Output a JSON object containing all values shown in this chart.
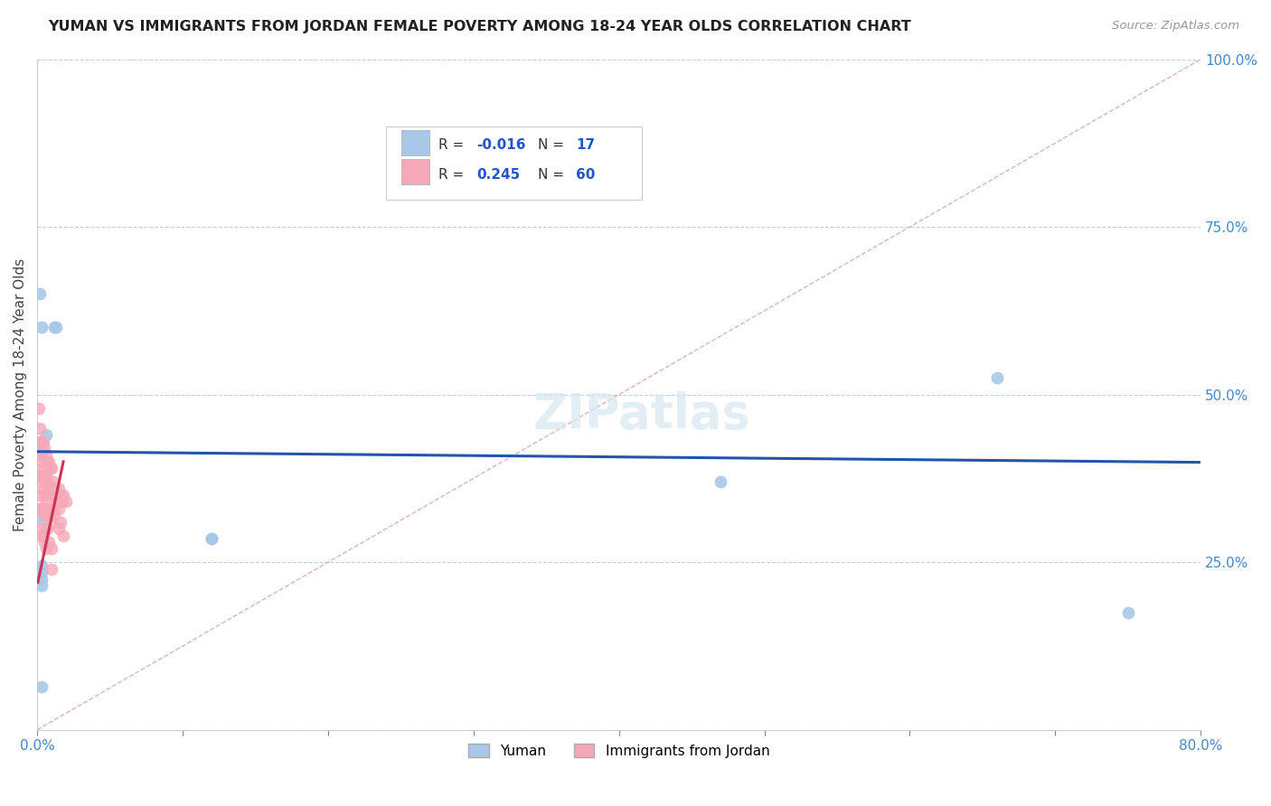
{
  "title": "YUMAN VS IMMIGRANTS FROM JORDAN FEMALE POVERTY AMONG 18-24 YEAR OLDS CORRELATION CHART",
  "source": "Source: ZipAtlas.com",
  "ylabel": "Female Poverty Among 18-24 Year Olds",
  "xlim": [
    0.0,
    0.8
  ],
  "ylim": [
    0.0,
    1.0
  ],
  "xticks": [
    0.0,
    0.1,
    0.2,
    0.3,
    0.4,
    0.5,
    0.6,
    0.7,
    0.8
  ],
  "xticklabels": [
    "0.0%",
    "",
    "",
    "",
    "",
    "",
    "",
    "",
    "80.0%"
  ],
  "yticks": [
    0.0,
    0.25,
    0.5,
    0.75,
    1.0
  ],
  "yticklabels": [
    "",
    "25.0%",
    "50.0%",
    "75.0%",
    "100.0%"
  ],
  "legend_blue_label": "Yuman",
  "legend_pink_label": "Immigrants from Jordan",
  "R_blue": "-0.016",
  "N_blue": "17",
  "R_pink": "0.245",
  "N_pink": "60",
  "blue_scatter_color": "#a8c8e8",
  "pink_scatter_color": "#f5a8b8",
  "trend_blue_color": "#2255aa",
  "trend_pink_color": "#cc3355",
  "diagonal_color": "#ddb0c0",
  "blue_points_x": [
    0.002,
    0.003,
    0.012,
    0.013,
    0.006,
    0.003,
    0.003,
    0.003,
    0.003,
    0.003,
    0.003,
    0.003,
    0.12,
    0.12,
    0.47,
    0.66,
    0.75
  ],
  "blue_points_y": [
    0.65,
    0.6,
    0.6,
    0.6,
    0.44,
    0.415,
    0.315,
    0.245,
    0.235,
    0.225,
    0.215,
    0.065,
    0.285,
    0.285,
    0.37,
    0.525,
    0.175
  ],
  "pink_points_x": [
    0.001,
    0.001,
    0.001,
    0.001,
    0.002,
    0.002,
    0.002,
    0.002,
    0.002,
    0.003,
    0.003,
    0.003,
    0.003,
    0.003,
    0.004,
    0.004,
    0.004,
    0.004,
    0.004,
    0.005,
    0.005,
    0.005,
    0.005,
    0.005,
    0.006,
    0.006,
    0.006,
    0.006,
    0.006,
    0.007,
    0.007,
    0.007,
    0.007,
    0.008,
    0.008,
    0.008,
    0.008,
    0.009,
    0.009,
    0.009,
    0.01,
    0.01,
    0.01,
    0.01,
    0.01,
    0.011,
    0.011,
    0.012,
    0.012,
    0.013,
    0.014,
    0.015,
    0.015,
    0.015,
    0.016,
    0.016,
    0.017,
    0.018,
    0.018,
    0.02
  ],
  "pink_points_y": [
    0.48,
    0.43,
    0.38,
    0.33,
    0.45,
    0.41,
    0.38,
    0.35,
    0.3,
    0.43,
    0.4,
    0.37,
    0.33,
    0.29,
    0.43,
    0.39,
    0.36,
    0.33,
    0.29,
    0.42,
    0.38,
    0.35,
    0.32,
    0.28,
    0.41,
    0.38,
    0.34,
    0.3,
    0.27,
    0.4,
    0.37,
    0.33,
    0.3,
    0.4,
    0.36,
    0.32,
    0.28,
    0.39,
    0.36,
    0.32,
    0.39,
    0.35,
    0.31,
    0.27,
    0.24,
    0.37,
    0.33,
    0.36,
    0.32,
    0.35,
    0.34,
    0.36,
    0.33,
    0.3,
    0.35,
    0.31,
    0.34,
    0.35,
    0.29,
    0.34
  ]
}
